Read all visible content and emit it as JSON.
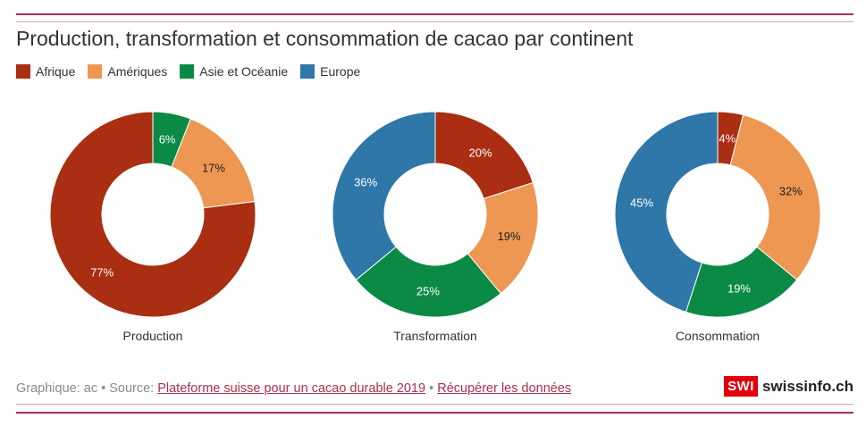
{
  "title": "Production, transformation et consommation de cacao par continent",
  "legend": [
    {
      "label": "Afrique",
      "color": "#aa2e12"
    },
    {
      "label": "Amériques",
      "color": "#ee9752"
    },
    {
      "label": "Asie et Océanie",
      "color": "#0b8a45"
    },
    {
      "label": "Europe",
      "color": "#2e77a8"
    }
  ],
  "chart_data": {
    "type": "pie",
    "variant": "donut",
    "series_names": [
      "Afrique",
      "Amériques",
      "Asie et Océanie",
      "Europe"
    ],
    "charts": [
      {
        "label": "Production",
        "values": [
          77,
          17,
          6,
          0
        ],
        "order": [
          "Asie et Océanie",
          "Amériques",
          "Afrique"
        ]
      },
      {
        "label": "Transformation",
        "values": [
          20,
          19,
          25,
          36
        ],
        "order": [
          "Afrique",
          "Amériques",
          "Asie et Océanie",
          "Europe"
        ]
      },
      {
        "label": "Consommation",
        "values": [
          4,
          32,
          19,
          45
        ],
        "order": [
          "Afrique",
          "Amériques",
          "Asie et Océanie",
          "Europe"
        ]
      }
    ]
  },
  "footer": {
    "prefix": "Graphique: ac • Source: ",
    "source_link": "Plateforme suisse pour un cacao durable 2019",
    "separator": " • ",
    "data_link": "Récupérer les données"
  },
  "logo": {
    "box": "SWI",
    "text": "swissinfo.ch"
  }
}
